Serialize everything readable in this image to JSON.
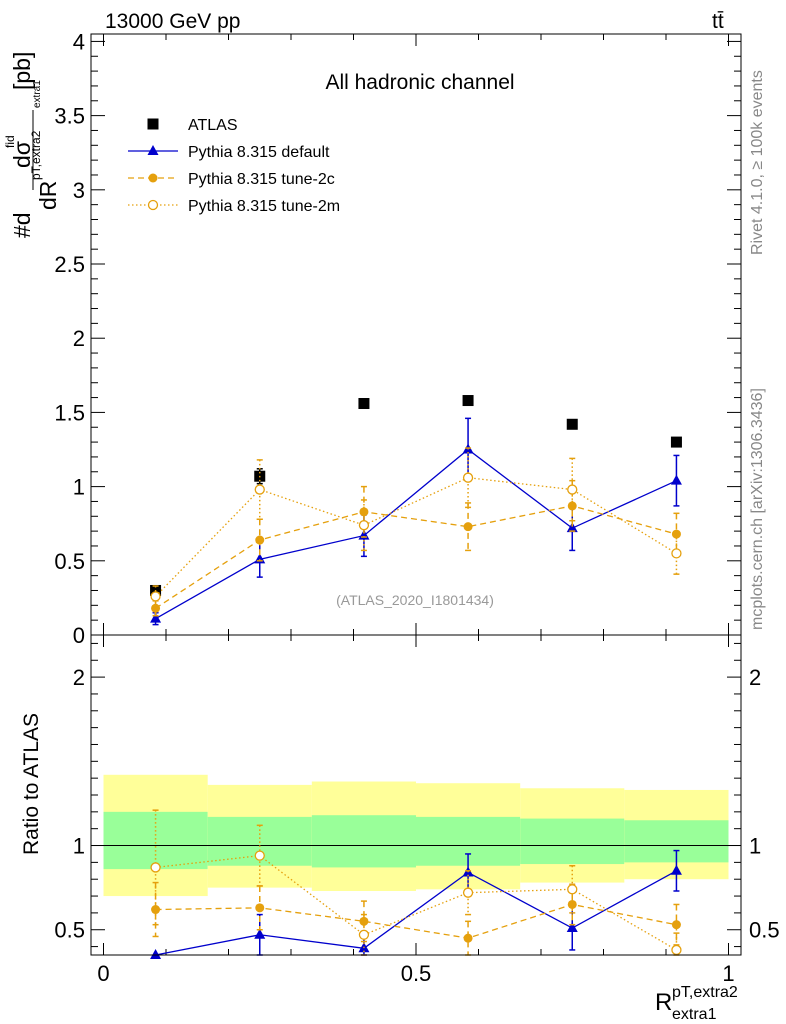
{
  "header": {
    "energy_label": "13000 GeV pp",
    "process_label": "tt̄",
    "side_rivet": "Rivet 4.1.0, ≥ 100k events",
    "side_mcplots": "mcplots.cern.ch [arXiv:1306.3436]",
    "analysis_id": "(ATLAS_2020_I1801434)"
  },
  "axes": {
    "main_ylabel_prefix": "#d",
    "main_ylabel_num": "dσ",
    "main_ylabel_num_sup": "fid",
    "main_ylabel_den": "dR",
    "main_ylabel_den_sup": "pT,extra2",
    "main_ylabel_den_sub": "extra1",
    "main_ylabel_unit": "[pb]",
    "ratio_ylabel": "Ratio to ATLAS",
    "xlabel_main": "R",
    "xlabel_sup": "pT,extra2",
    "xlabel_sub": "extra1"
  },
  "colors": {
    "atlas": "#000000",
    "default": "#0000cc",
    "tune2c": "#e5a00d",
    "tune2m": "#e5a00d",
    "band_inner": "#99ff99",
    "band_outer": "#ffff99",
    "muted": "#888888"
  },
  "chart_data": [
    {
      "type": "line",
      "panel": "main",
      "title": "All hadronic channel",
      "xlim": [
        -0.02,
        1.02
      ],
      "ylim": [
        0,
        4.05
      ],
      "xticks": [
        0,
        0.5,
        1
      ],
      "yticks": [
        0,
        0.5,
        1,
        1.5,
        2,
        2.5,
        3,
        3.5,
        4
      ],
      "ytick_labels": [
        "0",
        "0.5",
        "1",
        "1.5",
        "2",
        "2.5",
        "3",
        "3.5",
        "4"
      ],
      "x": [
        0.0833,
        0.25,
        0.4167,
        0.5833,
        0.75,
        0.9167
      ],
      "bin_edges": [
        0,
        0.1667,
        0.3333,
        0.5,
        0.6667,
        0.8333,
        1.0
      ],
      "series": [
        {
          "name": "ATLAS",
          "style": "square",
          "values": [
            0.3,
            1.07,
            1.56,
            1.58,
            1.42,
            1.3
          ],
          "err": [
            0.03,
            0.05,
            0,
            0,
            0,
            0
          ]
        },
        {
          "name": "Pythia 8.315 default",
          "style": "triangle",
          "values": [
            0.11,
            0.51,
            0.67,
            1.25,
            0.72,
            1.04
          ],
          "err": [
            0.04,
            0.12,
            0.14,
            0.21,
            0.15,
            0.17
          ]
        },
        {
          "name": "Pythia 8.315 tune-2c",
          "style": "dashed-circle",
          "values": [
            0.18,
            0.64,
            0.83,
            0.73,
            0.87,
            0.68
          ],
          "err": [
            0.05,
            0.14,
            0.17,
            0.16,
            0.17,
            0.14
          ]
        },
        {
          "name": "Pythia 8.315 tune-2m",
          "style": "dotted-open-circle",
          "values": [
            0.26,
            0.98,
            0.74,
            1.06,
            0.98,
            0.55
          ],
          "err": [
            0.07,
            0.2,
            0.17,
            0.2,
            0.21,
            0.14
          ]
        }
      ]
    },
    {
      "type": "line",
      "panel": "ratio",
      "ylabel": "Ratio to ATLAS",
      "xlim": [
        -0.02,
        1.02
      ],
      "ylim": [
        0.35,
        2.25
      ],
      "xticks": [
        0,
        0.5,
        1
      ],
      "xtick_labels": [
        "0",
        "0.5",
        "1"
      ],
      "yticks": [
        0.5,
        1,
        2
      ],
      "ytick_labels": [
        "0.5",
        "1",
        "2"
      ],
      "x": [
        0.0833,
        0.25,
        0.4167,
        0.5833,
        0.75,
        0.9167
      ],
      "bin_edges": [
        0,
        0.1667,
        0.3333,
        0.5,
        0.6667,
        0.8333,
        1.0
      ],
      "band_inner": {
        "low": [
          0.86,
          0.88,
          0.87,
          0.88,
          0.89,
          0.9
        ],
        "high": [
          1.2,
          1.17,
          1.18,
          1.17,
          1.16,
          1.15
        ]
      },
      "band_outer": {
        "low": [
          0.7,
          0.75,
          0.73,
          0.74,
          0.78,
          0.8
        ],
        "high": [
          1.42,
          1.36,
          1.38,
          1.37,
          1.34,
          1.33
        ]
      },
      "series": [
        {
          "name": "Pythia 8.315 default",
          "style": "triangle",
          "values": [
            0.35,
            0.47,
            0.39,
            0.84,
            0.51,
            0.85
          ],
          "err": [
            0.0,
            0.12,
            0.1,
            0.11,
            0.13,
            0.12
          ]
        },
        {
          "name": "Pythia 8.315 tune-2c",
          "style": "dashed-circle",
          "values": [
            0.62,
            0.63,
            0.55,
            0.45,
            0.65,
            0.53
          ],
          "err": [
            0.16,
            0.13,
            0.12,
            0.1,
            0.12,
            0.12
          ]
        },
        {
          "name": "Pythia 8.315 tune-2m",
          "style": "dotted-open-circle",
          "values": [
            0.87,
            0.94,
            0.47,
            0.72,
            0.74,
            0.38
          ],
          "err": [
            0.34,
            0.18,
            0.12,
            0.13,
            0.14,
            0.1
          ]
        }
      ]
    }
  ]
}
